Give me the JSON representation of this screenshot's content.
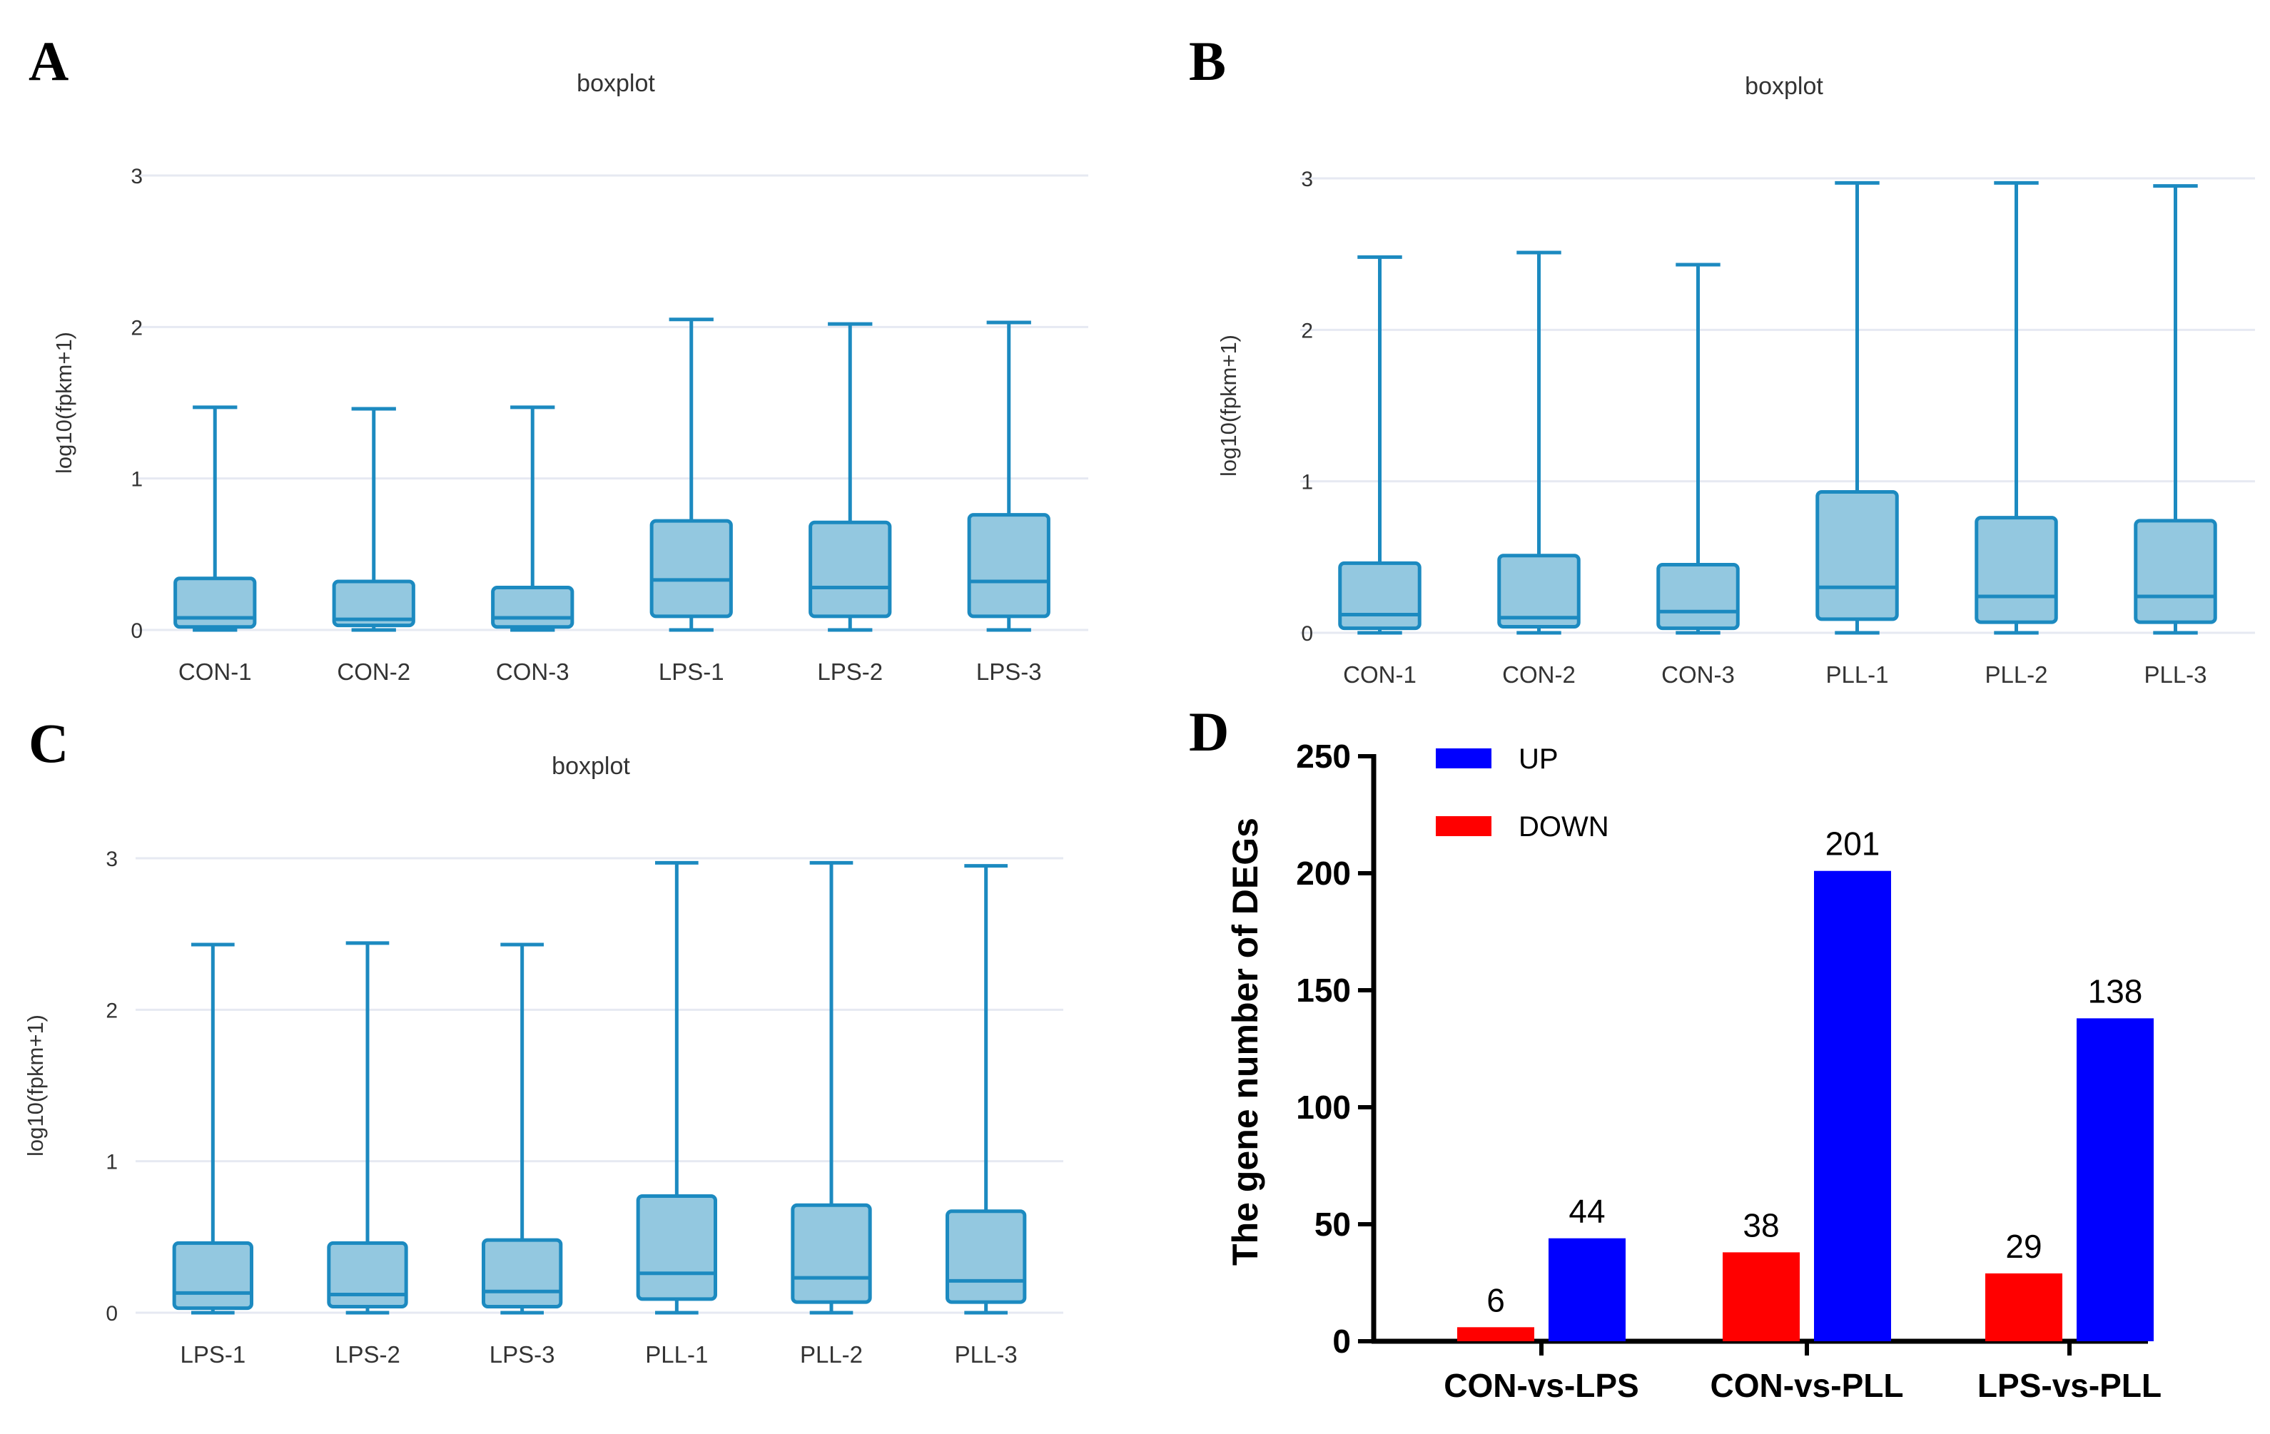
{
  "panels": {
    "A": {
      "label": "A"
    },
    "B": {
      "label": "B"
    },
    "C": {
      "label": "C"
    },
    "D": {
      "label": "D"
    }
  },
  "colors": {
    "box_fill": "#93c8e0",
    "box_stroke": "#1c8ac0",
    "grid": "#e6e9f2",
    "axis_text": "#333333",
    "up": "#0000ff",
    "down": "#ff0000"
  },
  "chart_data": [
    {
      "id": "A",
      "type": "boxplot",
      "title": "boxplot",
      "ylabel": "log10(fpkm+1)",
      "ylim": [
        0,
        3
      ],
      "yticks": [
        0,
        1,
        2,
        3
      ],
      "categories": [
        "CON-1",
        "CON-2",
        "CON-3",
        "LPS-1",
        "LPS-2",
        "LPS-3"
      ],
      "boxes": [
        {
          "min": 0.0,
          "q1": 0.02,
          "median": 0.08,
          "q3": 0.34,
          "max": 1.47
        },
        {
          "min": 0.0,
          "q1": 0.03,
          "median": 0.07,
          "q3": 0.32,
          "max": 1.46
        },
        {
          "min": 0.0,
          "q1": 0.02,
          "median": 0.08,
          "q3": 0.28,
          "max": 1.47
        },
        {
          "min": 0.0,
          "q1": 0.09,
          "median": 0.33,
          "q3": 0.72,
          "max": 2.05
        },
        {
          "min": 0.0,
          "q1": 0.09,
          "median": 0.28,
          "q3": 0.71,
          "max": 2.02
        },
        {
          "min": 0.0,
          "q1": 0.09,
          "median": 0.32,
          "q3": 0.76,
          "max": 2.03
        }
      ]
    },
    {
      "id": "B",
      "type": "boxplot",
      "title": "boxplot",
      "ylabel": "log10(fpkm+1)",
      "ylim": [
        0,
        3
      ],
      "yticks": [
        0,
        1,
        2,
        3
      ],
      "categories": [
        "CON-1",
        "CON-2",
        "CON-3",
        "PLL-1",
        "PLL-2",
        "PLL-3"
      ],
      "boxes": [
        {
          "min": 0.0,
          "q1": 0.03,
          "median": 0.12,
          "q3": 0.46,
          "max": 2.48
        },
        {
          "min": 0.0,
          "q1": 0.04,
          "median": 0.1,
          "q3": 0.51,
          "max": 2.51
        },
        {
          "min": 0.0,
          "q1": 0.03,
          "median": 0.14,
          "q3": 0.45,
          "max": 2.43
        },
        {
          "min": 0.0,
          "q1": 0.09,
          "median": 0.3,
          "q3": 0.93,
          "max": 2.97
        },
        {
          "min": 0.0,
          "q1": 0.07,
          "median": 0.24,
          "q3": 0.76,
          "max": 2.97
        },
        {
          "min": 0.0,
          "q1": 0.07,
          "median": 0.24,
          "q3": 0.74,
          "max": 2.95
        }
      ]
    },
    {
      "id": "C",
      "type": "boxplot",
      "title": "boxplot",
      "ylabel": "log10(fpkm+1)",
      "ylim": [
        0,
        3
      ],
      "yticks": [
        0,
        1,
        2,
        3
      ],
      "categories": [
        "LPS-1",
        "LPS-2",
        "LPS-3",
        "PLL-1",
        "PLL-2",
        "PLL-3"
      ],
      "boxes": [
        {
          "min": 0.0,
          "q1": 0.03,
          "median": 0.13,
          "q3": 0.46,
          "max": 2.43
        },
        {
          "min": 0.0,
          "q1": 0.04,
          "median": 0.12,
          "q3": 0.46,
          "max": 2.44
        },
        {
          "min": 0.0,
          "q1": 0.04,
          "median": 0.14,
          "q3": 0.48,
          "max": 2.43
        },
        {
          "min": 0.0,
          "q1": 0.09,
          "median": 0.26,
          "q3": 0.77,
          "max": 2.97
        },
        {
          "min": 0.0,
          "q1": 0.07,
          "median": 0.23,
          "q3": 0.71,
          "max": 2.97
        },
        {
          "min": 0.0,
          "q1": 0.07,
          "median": 0.21,
          "q3": 0.67,
          "max": 2.95
        }
      ]
    },
    {
      "id": "D",
      "type": "bar",
      "title": "",
      "ylabel": "The gene number of DEGs",
      "xlabel": "",
      "ylim": [
        0,
        250
      ],
      "yticks": [
        0,
        50,
        100,
        150,
        200,
        250
      ],
      "categories": [
        "CON-vs-LPS",
        "CON-vs-PLL",
        "LPS-vs-PLL"
      ],
      "series": [
        {
          "name": "DOWN",
          "values": [
            6,
            38,
            29
          ]
        },
        {
          "name": "UP",
          "values": [
            44,
            201,
            138
          ]
        }
      ],
      "legend": [
        {
          "name": "UP"
        },
        {
          "name": "DOWN"
        }
      ],
      "legend_position": "top-left"
    }
  ]
}
